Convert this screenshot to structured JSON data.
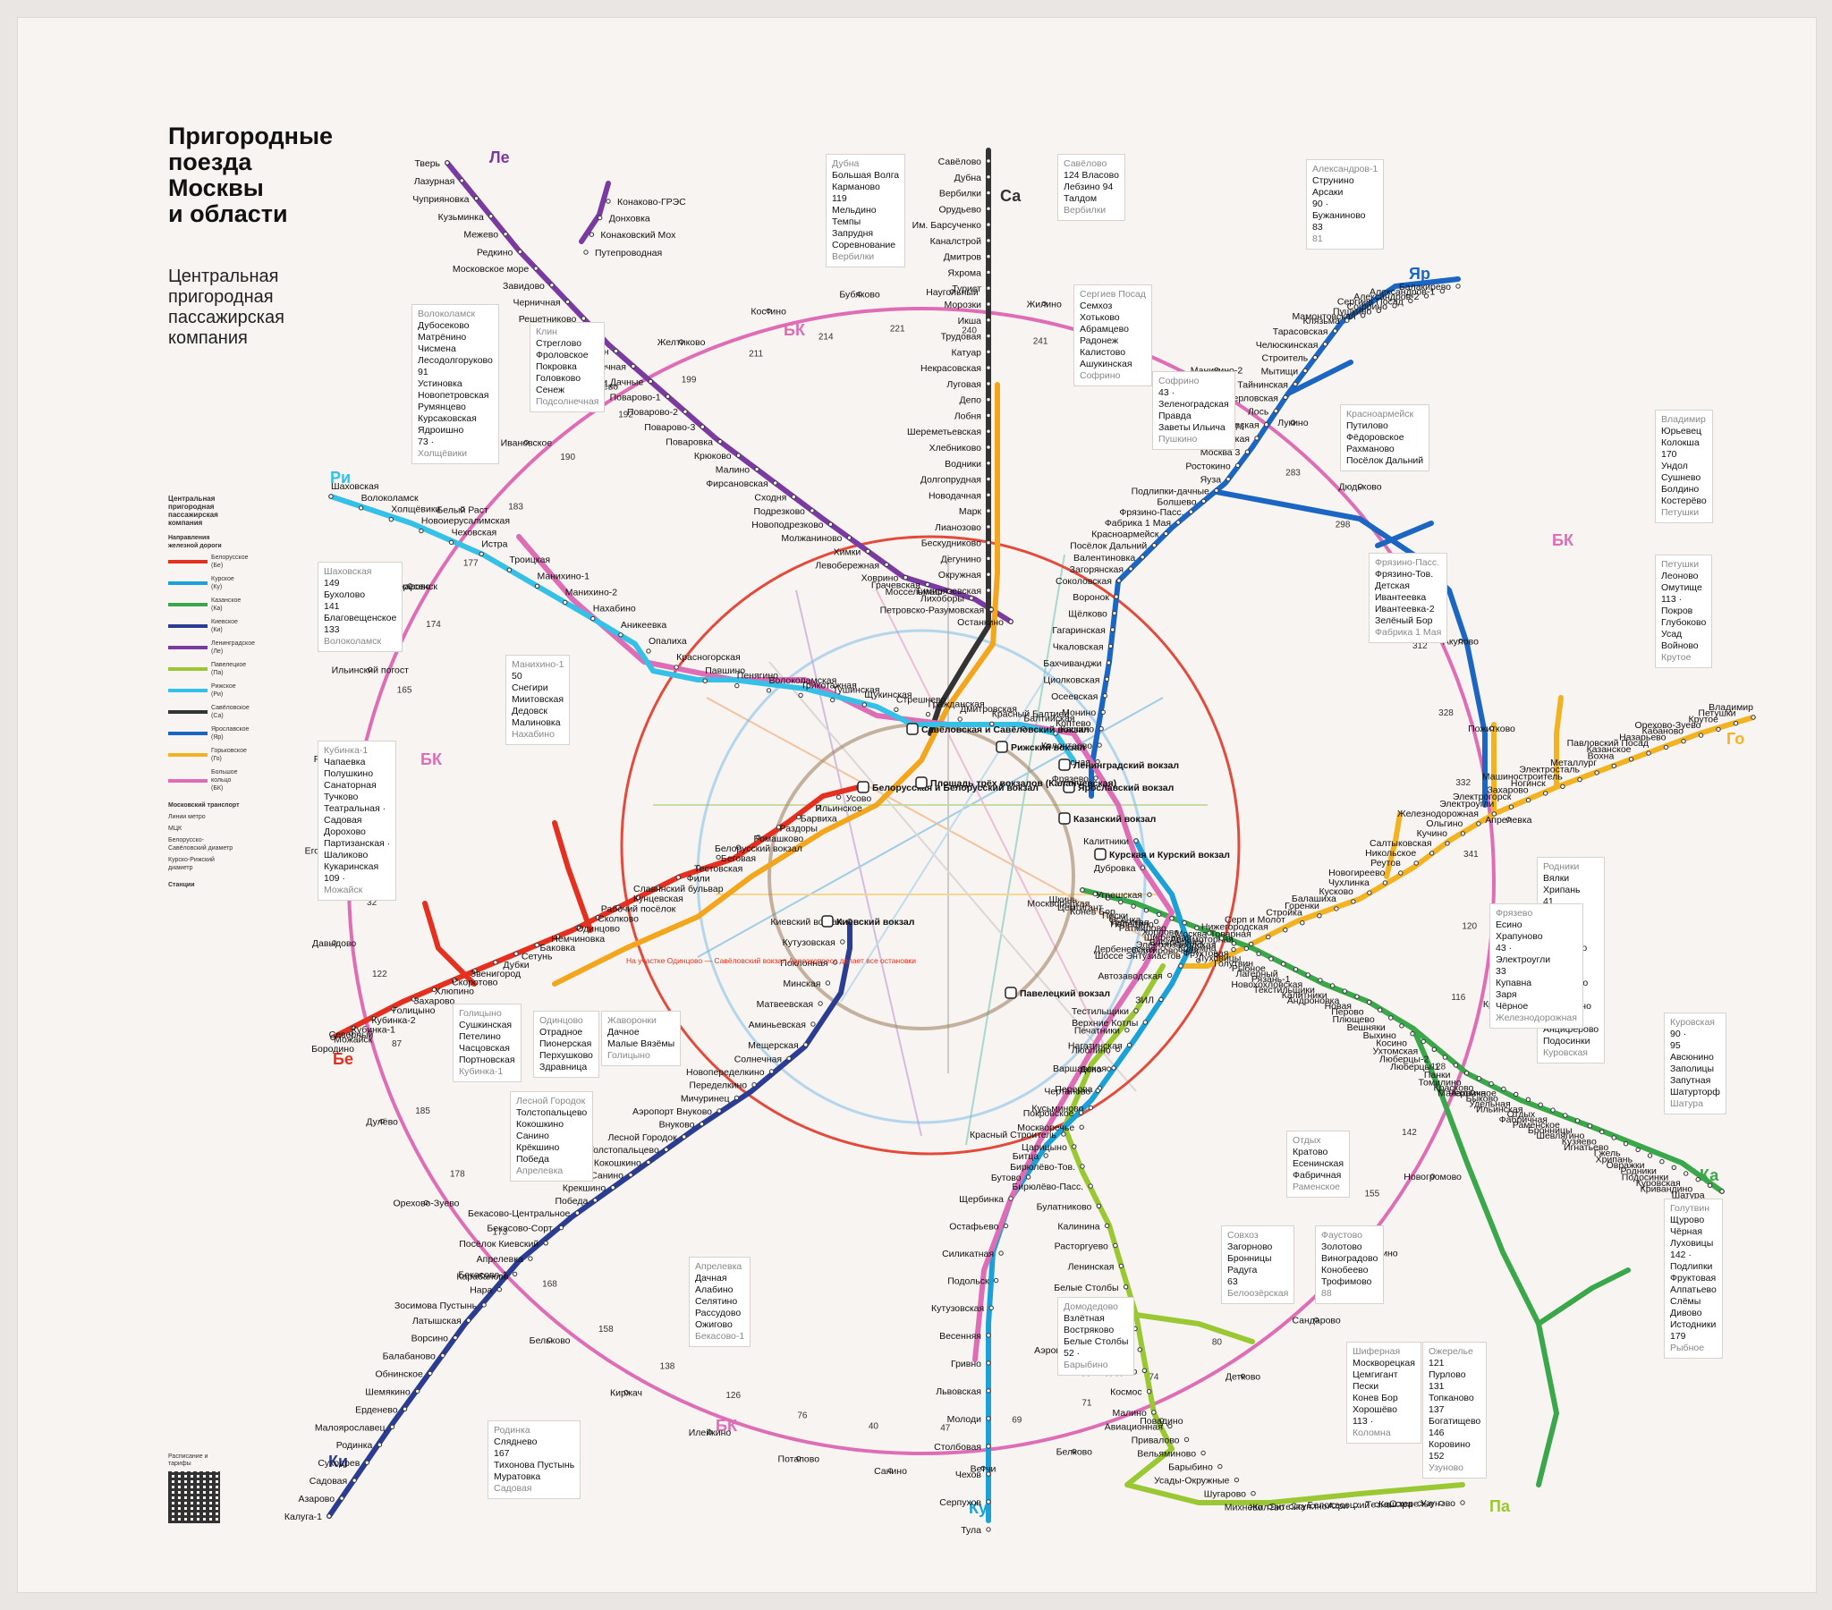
{
  "header": {
    "title": "Пригородные поезда Москвы и области",
    "title_lines": [
      "Пригородные",
      "поезда",
      "Москвы",
      "и области"
    ],
    "subtitle_lines": [
      "Центральная",
      "пригородная",
      "пассажирская",
      "компания"
    ]
  },
  "legend": {
    "company": "Центральная пригородная пассажирская компания",
    "directions_title": "Направления железной дороги",
    "directions": [
      {
        "label": "Белорусское (Бе)",
        "color": "#e53020"
      },
      {
        "label": "Курское (Ку)",
        "color": "#1aa2d8"
      },
      {
        "label": "Казанское (Ка)",
        "color": "#3aa84a"
      },
      {
        "label": "Киевское (Ки)",
        "color": "#2b3d93"
      },
      {
        "label": "Ленинградское (Ле)",
        "color": "#7b3aa0"
      },
      {
        "label": "Павелецкое (Па)",
        "color": "#9ac832"
      },
      {
        "label": "Рижское (Ри)",
        "color": "#35c0e8"
      },
      {
        "label": "Савёловское (Са)",
        "color": "#333333"
      },
      {
        "label": "Ярославское (Яр)",
        "color": "#1a66c2"
      },
      {
        "label": "Горьковское (Го)",
        "color": "#f3b321"
      },
      {
        "label": "Большое кольцо (БК)",
        "color": "#de6db5"
      }
    ],
    "transport_title": "Московский транспорт",
    "metro_label": "Линии метро",
    "mcc_label": "МЦК",
    "d1_label": "Белорусско-Савёловский диаметр",
    "d2_label": "Курско-Рижский диаметр",
    "stations_title": "Станции",
    "qr_label": "Расписание и тарифы"
  },
  "lines": [
    {
      "code": "Ле",
      "color": "#7b3aa0",
      "terminal": "Тверь"
    },
    {
      "code": "Са",
      "color": "#333333",
      "terminal": "Савёлово"
    },
    {
      "code": "Яр",
      "color": "#1a66c2",
      "terminal": "Балакирево"
    },
    {
      "code": "Го",
      "color": "#f3b321",
      "terminal": "Владимир"
    },
    {
      "code": "Ка",
      "color": "#3aa84a",
      "terminal": "Черусти"
    },
    {
      "code": "Па",
      "color": "#9ac832",
      "terminal": "Узуново"
    },
    {
      "code": "Ку",
      "color": "#1aa2d8",
      "terminal": "Тула"
    },
    {
      "code": "Ки",
      "color": "#2b3d93",
      "terminal": "Калуга-1"
    },
    {
      "code": "Бе",
      "color": "#e53020",
      "terminal": "Бородино"
    },
    {
      "code": "Ри",
      "color": "#35c0e8",
      "terminal": "Шаховская"
    },
    {
      "code": "БК",
      "color": "#de6db5",
      "terminal": ""
    }
  ],
  "terminals": [
    {
      "name": "Савёловский вокзал",
      "label": "Савёловская и Савёловский вокзал"
    },
    {
      "name": "Белорусский вокзал",
      "label": "Белорусская и Белорусский вокзал"
    },
    {
      "name": "Рижский вокзал",
      "label": "Рижский вокзал"
    },
    {
      "name": "Ленинградский вокзал",
      "label": "Ленинградский вокзал"
    },
    {
      "name": "Ярославский вокзал",
      "label": "Ярославский вокзал"
    },
    {
      "name": "Казанский вокзал",
      "label": "Казанский вокзал"
    },
    {
      "name": "Курский вокзал",
      "label": "Курская и Курский вокзал"
    },
    {
      "name": "Павелецкий вокзал",
      "label": "Павелецкий вокзал"
    },
    {
      "name": "Киевский вокзал",
      "label": "Киевский вокзал"
    },
    {
      "name": "Площадь трёх вокзалов",
      "label": "Площадь трёх вокзалов (Каланчевская)"
    }
  ],
  "stations": {
    "le": [
      "Тверь",
      "Лазурная",
      "Чуприяновка",
      "Кузьминка",
      "Межево",
      "Редкино",
      "Московское море",
      "Завидово",
      "Черничная",
      "Решетниково",
      "Ямуга",
      "Клин",
      "Подсолнечная",
      "Берёзки Дачные",
      "Поварово-1",
      "Поварово-2",
      "Поварово-3",
      "Повaровка",
      "Крюково",
      "Малино",
      "Фирсановская",
      "Сходня",
      "Подрезково",
      "Новоподрезково",
      "Молжаниново",
      "Химки",
      "Левобережная",
      "Ховрино",
      "Грачевская",
      "Моссельмаш",
      "Лихоборы",
      "Петровско-Разумовская",
      "Останкино"
    ],
    "le_branch": [
      "Конаково-ГРЭС",
      "Донховка",
      "Конаковский Мох",
      "Путепроводная"
    ],
    "sa": [
      "Савёлово",
      "Дубна",
      "Вербилки",
      "Орудьево",
      "Им. Барсученко",
      "Каналстрой",
      "Дмитров",
      "Яхрома",
      "Турист",
      "Морозки",
      "Икша",
      "Трудовая",
      "Катуар",
      "Некрасовская",
      "Луговая",
      "Депо",
      "Лобня",
      "Шереметьевская",
      "Хлебниково",
      "Водники",
      "Долгопрудная",
      "Новодачная",
      "Марк",
      "Лианозово",
      "Бескудниково",
      "Дегунино",
      "Окружная",
      "Тимирязевская"
    ],
    "yar": [
      "Балакирево",
      "Александров-1",
      "Александров-2",
      "Сергиев Посад",
      "Софрино",
      "Пушкино",
      "Мамонтовская",
      "Клязьма",
      "Тарасовская",
      "Челюскинская",
      "Строитель",
      "Мытищи",
      "Тайнинская",
      "Перловская",
      "Лось",
      "Лосиноостровская",
      "Маленковская",
      "Москва 3",
      "Ростокино",
      "Яуза",
      "Подлипки-дачные",
      "Болшево",
      "Фрязино-Пасс.",
      "Фабрика 1 Мая",
      "Красноармейск",
      "Посёлок Дальний",
      "Валентиновка",
      "Загорянская",
      "Соколовская",
      "Воронок",
      "Щёлково",
      "Гагаринская",
      "Чкаловская",
      "Бахчиванджи",
      "Циолковская",
      "Осеевская",
      "Монино",
      "Кашино",
      "Колонтаево",
      "Лесная",
      "Фрязево"
    ],
    "go": [
      "Владимир",
      "Петушки",
      "Крутое",
      "Орехово-Зуево",
      "Кабаново",
      "Назарьево",
      "Павловский Посад",
      "Казанское",
      "Вохна",
      "Металлург",
      "Электросталь",
      "Машиностроитель",
      "Ногинск",
      "Захарово",
      "Электрогорск",
      "Электроугли",
      "Железнодорожная",
      "Ольгино",
      "Кучино",
      "Салтыковская",
      "Никольское",
      "Реутов",
      "Новогиреево",
      "Чухлинка",
      "Кусково",
      "Балашиха",
      "Горенки",
      "Стройка",
      "Серп и Молот",
      "Нижегородская",
      "Москва-Товарная",
      "Авиамоторная",
      "Электрозаводская",
      "Сортировочная",
      "Шоссе Энтузиастов"
    ],
    "ka": [
      "Черусти",
      "Шатура",
      "Кривандино",
      "Куровская",
      "Подосинки",
      "Родники",
      "Овражки",
      "Хрипань",
      "Гжель",
      "Игнатьево",
      "Кузяево",
      "Шевлягино",
      "Бронницы",
      "Раменское",
      "Фабричная",
      "Отдых",
      "Ильинская",
      "Удельная",
      "Быково",
      "Малаховка",
      "Красково",
      "Томилино",
      "Панки",
      "Люберцы-1",
      "Люберцы-2",
      "Ухтомская",
      "Косино",
      "Выхино",
      "Вешняки",
      "Плющево",
      "Перово",
      "Новая",
      "Андроновка",
      "Калитники",
      "Текстильщики",
      "Новохохловская",
      "Рязань-1",
      "Лагерный",
      "Рыбное",
      "Голутвин",
      "Луховицы",
      "Фруктовая",
      "Коломна",
      "Воскресенск",
      "Шиферная",
      "Хорлово",
      "Ратмирово",
      "Непецино",
      "Осёнка",
      "Пески",
      "Конев Бор",
      "Цемгигант",
      "Москворецкая",
      "Шкинь"
    ],
    "pa": [
      "Узуново",
      "Ожерелье",
      "Кашира",
      "Тесна",
      "Белопесоцкий",
      "Акри",
      "Ступино",
      "Ситенка",
      "Жилёво",
      "Михнево",
      "Шугарово",
      "Усады-Окружные",
      "Барыбино",
      "Вельяминово",
      "Привалово",
      "Авиационная",
      "Малино",
      "Космос",
      "Домодедово",
      "Аэропорт Домодедово",
      "Взлётная",
      "Востряково",
      "Белые Столбы",
      "Ленинская",
      "Расторгуево",
      "Калинина",
      "Булатниково",
      "Бирюлёво-Пасс.",
      "Бирюлёво-Тов.",
      "Царицыно",
      "Москворечье",
      "Кусьминово",
      "Перерва",
      "Депо",
      "Люблино",
      "Печатники",
      "Тестильщики"
    ],
    "ku": [
      "Тула",
      "Серпухов",
      "Чехов",
      "Столбовая",
      "Молоди",
      "Львовская",
      "Гривно",
      "Весенняя",
      "Кутузовская",
      "Подольск",
      "Силикатная",
      "Остафьево",
      "Щербинка",
      "Бутово",
      "Битца",
      "Красный Строитель",
      "Покровское",
      "Чертаново",
      "Варшавская",
      "Нагатинская",
      "Верхние Котлы",
      "ЗИЛ",
      "Автозаводская",
      "Дербеневская",
      "Тульская",
      "Угрешская",
      "Дубровка",
      "Калитники"
    ],
    "ki": [
      "Калуга-1",
      "Азарово",
      "Садовая",
      "Суходрев",
      "Родинка",
      "Малоярославец",
      "Ерденево",
      "Шемякино",
      "Обнинское",
      "Балабаново",
      "Ворсино",
      "Латышская",
      "Зосимова Пустынь",
      "Нара",
      "Бекасово-1",
      "Апрелевка",
      "Посёлок Киевский",
      "Бекасово-Сорт.",
      "Бекасово-Центральное",
      "Победа",
      "Крекшино",
      "Санино",
      "Кокошкино",
      "Толстопальцево",
      "Лесной Городок",
      "Внуково",
      "Аэропорт Внуково",
      "Мичуринец",
      "Переделкино",
      "Новопеределкино",
      "Солнечная",
      "Мещерская",
      "Аминьевская",
      "Матвеевская",
      "Минская",
      "Поклонная",
      "Кутузовская",
      "Киевский вокзал"
    ],
    "be": [
      "Бородино",
      "Можайск",
      "Кубинка-1",
      "Кубинка-2",
      "Голицыно",
      "Захарово",
      "Хлюпино",
      "Скоротово",
      "Звенигород",
      "Дубки",
      "Сетунь",
      "Баковка",
      "Немчиновка",
      "Одинцово",
      "Сколково",
      "Рабочий посёлок",
      "Кунцевская",
      "Славянский бульвар",
      "Фили",
      "Тестовская",
      "Беговая",
      "Белорусский вокзал",
      "Ромашково",
      "Раздоры",
      "Барвиха",
      "Ильинское",
      "Усово"
    ],
    "ri": [
      "Шаховская",
      "Волоколамск",
      "Холщёвики",
      "Новоиерусалимская",
      "Чеховская",
      "Истра",
      "Троицкая",
      "Манихино-1",
      "Манихино-2",
      "Нахабино",
      "Аникеевка",
      "Опалиха",
      "Красногорская",
      "Павшино",
      "Пенягино",
      "Волоколамская",
      "Трикотажная",
      "Тушинская",
      "Щукинская",
      "Стрешнево",
      "Гражданская",
      "Дмитровская",
      "Красный Балтиец",
      "Балтийская",
      "Коптево"
    ],
    "bk": [
      "Бухарово",
      "Белый Раст",
      "Ивановское",
      "Драчёво",
      "Желтиково",
      "Костино",
      "Бубяково",
      "Наугольный",
      "Жилино",
      "Депо",
      "Манихино-2",
      "Лукино",
      "Дюдьково",
      "Ястребки",
      "Акулово",
      "Пожитково",
      "Апрелевка",
      "Мачихино",
      "Крёсты",
      "Черничное",
      "Новогромово",
      "Вяткино",
      "Сандарово",
      "Детково",
      "Повадино",
      "Белково",
      "Ветчи",
      "Санино",
      "Потапово",
      "Илейкино",
      "Киржач",
      "Бельково",
      "Карабаново",
      "Орехово-Зуево",
      "Дулёво",
      "Северный",
      "Давыдово",
      "Егорьевский",
      "Рудниковская",
      "Ильинский погост",
      "Воскресенск"
    ]
  },
  "callouts": [
    {
      "title": "Дубна",
      "lines": [
        "Большая Волга",
        "Карманово",
        "119",
        "Мельдино",
        "Темпы",
        "Запрудня",
        "Соревнование"
      ],
      "note": "Вербилки"
    },
    {
      "title": "Савёлово",
      "lines": [
        "124 Власово",
        "Лебзино 94",
        "Талдом"
      ],
      "note": "Вербилки"
    },
    {
      "title": "Александров-1",
      "lines": [
        "Струнино",
        "Арсаки",
        "90 ·",
        "Бужаниново",
        "83"
      ],
      "note": "81"
    },
    {
      "title": "Волоколамск",
      "lines": [
        "Дубосеково",
        "Матрёнино",
        "Чисмена",
        "Лесодолгоруково",
        "91",
        "Устиновка",
        "Новопетровская",
        "Румянцево",
        "Курсаковская",
        "Ядроишно",
        "73 ·"
      ],
      "note": "Холщёвики"
    },
    {
      "title": "Клин",
      "lines": [
        "Стреглово",
        "Фроловское",
        "Покровка",
        "Головково",
        "Сенеж"
      ],
      "note": "Подсолнечная"
    },
    {
      "title": "Сергиев Посад",
      "lines": [
        "Семхоз",
        "Хотьково",
        "Абрамцево",
        "Радонеж",
        "Калистово",
        "Ашукинская"
      ],
      "note": "Софрино"
    },
    {
      "title": "Софрино",
      "lines": [
        "43 ·",
        "Зеленоградская",
        "Правда",
        "Заветы Ильича"
      ],
      "note": "Пушкино"
    },
    {
      "title": "Красноармейск",
      "lines": [
        "Путилово",
        "Фёдоровское",
        "Рахманово",
        "Посёлок Дальний"
      ],
      "note": ""
    },
    {
      "title": "Фрязино-Пасс.",
      "lines": [
        "Фрязино-Тов.",
        "Детская",
        "Ивантеевка",
        "Ивантеевка-2",
        "Зелёный Бор"
      ],
      "note": "Фабрика 1 Мая"
    },
    {
      "title": "Владимир",
      "lines": [
        "Юрьевец",
        "Колокша",
        "170",
        "Ундол",
        "Сушнево",
        "Болдино",
        "Костерёво"
      ],
      "note": "Петушки"
    },
    {
      "title": "Петушки",
      "lines": [
        "Леоново",
        "Омутище",
        "113 ·",
        "Покров",
        "Глубоково",
        "Усад",
        "Войново"
      ],
      "note": "Крутое"
    },
    {
      "title": "Шаховская",
      "lines": [
        "149",
        "Бухолово",
        "141",
        "Благовещенское",
        "133"
      ],
      "note": "Волоколамск"
    },
    {
      "title": "Манихино-1",
      "lines": [
        "50",
        "Снегири",
        "Миитовская",
        "Дедовск",
        "Малиновка"
      ],
      "note": "Нахабино"
    },
    {
      "title": "Кубинка-1",
      "lines": [
        "Чапаевка",
        "Полушкино",
        "Санаторная",
        "Тучково",
        "Театральная ·",
        "Садовая",
        "Дорохово",
        "Партизанская ·",
        "Шаликово",
        "Кукаринская",
        "109 ·"
      ],
      "note": "Можайск"
    },
    {
      "title": "Родники",
      "lines": [
        "Вялки",
        "Хрипань",
        "41",
        "Донино",
        "49",
        "52 ·",
        "Григорово",
        "55",
        "Гжель",
        "Игнатьево",
        "Кузяево",
        "Шевлягино",
        "73 ·",
        "Анциферово",
        "Подосинки"
      ],
      "note": "Куровская"
    },
    {
      "title": "Фрязево",
      "lines": [
        "Есино",
        "Храпуново",
        "43 ·",
        "Электроугли",
        "33",
        "Купавна",
        "Заря",
        "Чёрное"
      ],
      "note": "Железнодорожная"
    },
    {
      "title": "Куровская",
      "lines": [
        "90 ·",
        "95",
        "Авсюнино",
        "Заполицы",
        "Запутная",
        "Шатурторф"
      ],
      "note": "Шатура"
    },
    {
      "title": "Голицыно",
      "lines": [
        "Сушкинская",
        "Петелино",
        "Часцовская",
        "Портновская"
      ],
      "note": "Кубинка-1"
    },
    {
      "title": "Одинцово",
      "lines": [
        "Отрадное",
        "Пионерская",
        "Перхушково",
        "Здравница"
      ],
      "note": ""
    },
    {
      "title": "Жаворонки",
      "lines": [
        "Дачное",
        "Малые Вязёмы"
      ],
      "note": "Голицыно"
    },
    {
      "title": "Лесной Городок",
      "lines": [
        "Толстопальцево",
        "Кокошкино",
        "Санино",
        "Крёкшино",
        "Победа"
      ],
      "note": "Апрелевка"
    },
    {
      "title": "Отдых",
      "lines": [
        "Кратово",
        "Есенинская",
        "Фабричная"
      ],
      "note": "Раменское"
    },
    {
      "title": "Голутвин",
      "lines": [
        "Щурово",
        "Чёрная",
        "Луховицы",
        "142 ·",
        "Подлипки",
        "Фруктовая",
        "Алпатьево",
        "Слёмы",
        "Дивово",
        "Истодники",
        "179"
      ],
      "note": "Рыбное"
    },
    {
      "title": "Совхоз",
      "lines": [
        "Загорново",
        "Бронницы",
        "Радуга",
        "63"
      ],
      "note": "Белоозёрская"
    },
    {
      "title": "Фаустово",
      "lines": [
        "Золотово",
        "Виноградово",
        "Конобеево",
        "Трофимово"
      ],
      "note": "88"
    },
    {
      "title": "Апрелевка",
      "lines": [
        "Дачная",
        "Алабино",
        "Селятино",
        "Рассудово",
        "Ожигово"
      ],
      "note": "Бекасово-1"
    },
    {
      "title": "Домодедово",
      "lines": [
        "Взлётная",
        "Востряково",
        "Белые Столбы",
        "52 ·"
      ],
      "note": "Барыбино"
    },
    {
      "title": "Шиферная",
      "lines": [
        "Москворецкая",
        "Цемгигант",
        "Пески",
        "Конев Бор",
        "Хорошёво",
        "113 ·"
      ],
      "note": "Коломна"
    },
    {
      "title": "Ожерелье",
      "lines": [
        "121",
        "Пурлово",
        "131",
        "Топканово",
        "137",
        "Богатищево",
        "146",
        "Коровино",
        "152"
      ],
      "note": "Узуново"
    },
    {
      "title": "Родинка",
      "lines": [
        "Сляднево",
        "167",
        "Тихонова Пустынь",
        "Муратовка"
      ],
      "note": "Садовая"
    }
  ],
  "distances": [
    "165",
    "174",
    "177",
    "183",
    "190",
    "192",
    "199",
    "211",
    "214",
    "221",
    "240",
    "241",
    "250",
    "252",
    "274",
    "283",
    "298",
    "309",
    "312",
    "328",
    "332",
    "341",
    "120",
    "116",
    "128",
    "142",
    "155",
    "159",
    "109",
    "80",
    "74",
    "71",
    "69",
    "47",
    "40",
    "76",
    "126",
    "138",
    "158",
    "168",
    "173",
    "178",
    "185",
    "87",
    "122",
    "32",
    "88",
    "85"
  ],
  "note": "На участке Одинцово — Савёловский вокзал Аэроэкспресс делает все остановки"
}
